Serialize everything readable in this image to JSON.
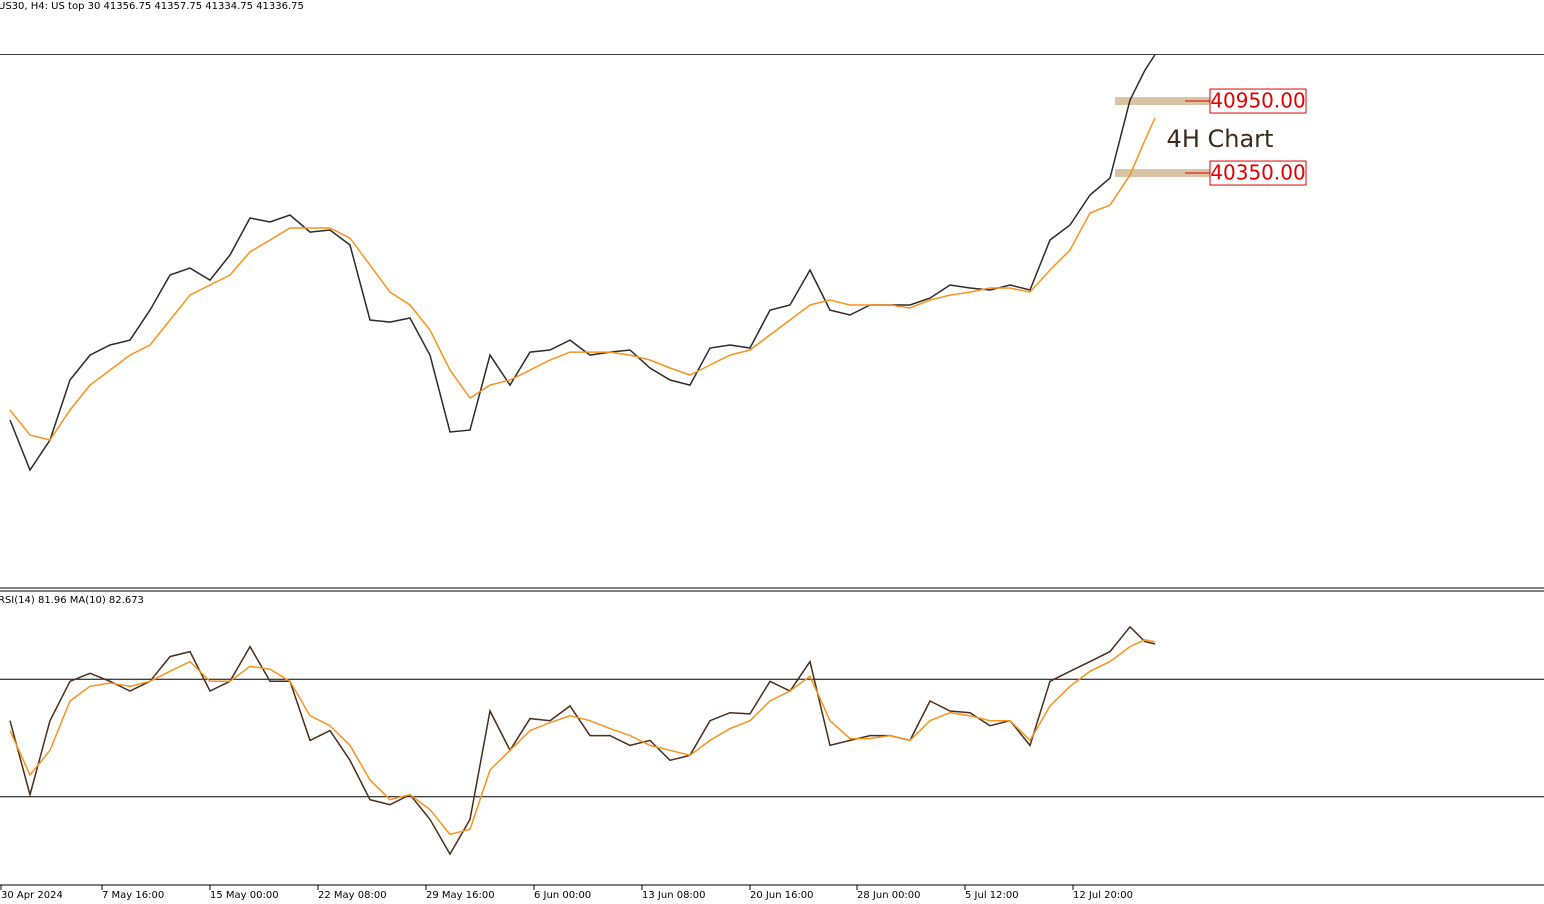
{
  "chart_data": [
    {
      "type": "line",
      "header": "US30, H4:  US top 30  41356.75 41357.75 41334.75 41336.75",
      "last_price": 41336.75,
      "annotation": "4H Chart",
      "x": [
        0,
        1,
        2,
        3,
        4,
        5,
        6,
        7,
        8,
        9,
        10,
        11,
        12,
        13,
        14,
        15,
        16,
        17,
        18,
        19,
        20,
        21,
        22,
        23,
        24,
        25,
        26,
        27,
        28,
        29,
        30,
        31,
        32,
        33,
        34,
        35,
        36,
        37,
        38,
        39,
        40,
        41,
        42,
        43,
        44,
        45,
        46,
        47,
        48,
        49,
        50,
        51,
        52,
        53,
        54,
        55,
        56,
        56.75,
        57.25
      ],
      "series": [
        {
          "color": "#2b2b2b",
          "values": [
            38292,
            37875,
            38125,
            38625,
            38833,
            38917,
            38958,
            39208,
            39500,
            39558,
            39458,
            39667,
            39975,
            39942,
            40000,
            39858,
            39875,
            39750,
            39125,
            39108,
            39142,
            38833,
            38192,
            38208,
            38833,
            38583,
            38858,
            38875,
            38958,
            38833,
            38858,
            38875,
            38725,
            38625,
            38583,
            38892,
            38917,
            38892,
            39208,
            39250,
            39542,
            39208,
            39167,
            39250,
            39250,
            39250,
            39308,
            39417,
            39392,
            39375,
            39417,
            39375,
            39792,
            39917,
            40167,
            40308,
            40958,
            41208,
            41337
          ]
        },
        {
          "color": "#f7931e",
          "values": [
            38375,
            38167,
            38125,
            38375,
            38583,
            38708,
            38833,
            38917,
            39125,
            39333,
            39417,
            39500,
            39692,
            39792,
            39892,
            39892,
            39892,
            39808,
            39583,
            39358,
            39250,
            39042,
            38708,
            38475,
            38583,
            38625,
            38708,
            38792,
            38858,
            38858,
            38858,
            38833,
            38792,
            38725,
            38667,
            38750,
            38833,
            38875,
            39000,
            39125,
            39250,
            39292,
            39250,
            39250,
            39250,
            39225,
            39292,
            39333,
            39358,
            39392,
            39392,
            39358,
            39542,
            39708,
            40017,
            40083,
            40333,
            40625,
            40808
          ]
        }
      ],
      "levels": [
        {
          "value": 40950,
          "label": "40950.00"
        },
        {
          "value": 40350,
          "label": "40350.00"
        }
      ],
      "level_color": "#d8c3a5",
      "xlim": [
        -0.5,
        76.7
      ],
      "ylim": [
        36892,
        41792
      ]
    },
    {
      "type": "line",
      "title": "RSI(14) 81.96 MA(10) 82.673",
      "x": [
        0,
        1,
        2,
        3,
        4,
        5,
        6,
        7,
        8,
        9,
        10,
        11,
        12,
        13,
        14,
        15,
        16,
        17,
        18,
        19,
        20,
        21,
        22,
        23,
        24,
        25,
        26,
        27,
        28,
        29,
        30,
        31,
        32,
        33,
        34,
        35,
        36,
        37,
        38,
        39,
        40,
        41,
        42,
        43,
        44,
        45,
        46,
        47,
        48,
        49,
        50,
        51,
        52,
        53,
        54,
        55,
        56,
        56.75,
        57.25
      ],
      "series": [
        {
          "color": "#4a2e1a",
          "values": [
            55.9,
            30.7,
            55.9,
            69.3,
            72.0,
            69.3,
            66.0,
            69.3,
            77.7,
            79.4,
            66.0,
            69.3,
            81.1,
            69.3,
            69.3,
            49.2,
            52.5,
            42.4,
            29.0,
            27.3,
            30.7,
            22.3,
            10.5,
            22.3,
            59.2,
            45.8,
            56.6,
            55.9,
            60.9,
            50.8,
            50.8,
            47.5,
            49.2,
            42.4,
            44.1,
            55.9,
            58.6,
            58.2,
            69.3,
            66.0,
            76.0,
            47.5,
            49.2,
            50.8,
            50.8,
            49.2,
            62.6,
            59.2,
            58.6,
            54.2,
            55.9,
            47.5,
            69.3,
            72.7,
            76.0,
            79.4,
            87.8,
            82.8,
            81.96
          ]
        },
        {
          "color": "#f7931e",
          "values": [
            52.5,
            37.4,
            45.8,
            62.6,
            67.6,
            68.7,
            67.6,
            69.3,
            72.7,
            76.0,
            69.3,
            69.3,
            74.4,
            73.4,
            69.3,
            57.6,
            54.2,
            47.5,
            35.7,
            29.0,
            30.7,
            25.6,
            17.2,
            18.9,
            39.1,
            45.8,
            52.5,
            55.2,
            57.6,
            55.9,
            53.2,
            50.8,
            47.5,
            45.8,
            44.1,
            49.2,
            53.2,
            55.9,
            62.6,
            66.0,
            71.0,
            55.9,
            49.8,
            49.8,
            50.8,
            49.2,
            55.9,
            58.6,
            57.6,
            55.9,
            55.9,
            49.2,
            60.9,
            67.6,
            72.7,
            76.0,
            81.1,
            83.4,
            82.673
          ]
        }
      ],
      "levels": [
        70,
        30
      ],
      "xlim": [
        -0.5,
        76.7
      ],
      "ylim": [
        0,
        100
      ],
      "xticks": [
        {
          "value": -0.45,
          "label": "30 Apr 2024"
        },
        {
          "value": 4.6,
          "label": "7 May 16:00"
        },
        {
          "value": 10.0,
          "label": "15 May 00:00"
        },
        {
          "value": 15.4,
          "label": "22 May 08:00"
        },
        {
          "value": 20.8,
          "label": "29 May 16:00"
        },
        {
          "value": 26.2,
          "label": "6 Jun 00:00"
        },
        {
          "value": 31.6,
          "label": "13 Jun 08:00"
        },
        {
          "value": 37.0,
          "label": "20 Jun 16:00"
        },
        {
          "value": 42.35,
          "label": "28 Jun 00:00"
        },
        {
          "value": 47.75,
          "label": "5 Jul 12:00"
        },
        {
          "value": 53.15,
          "label": "12 Jul 20:00"
        }
      ]
    }
  ]
}
